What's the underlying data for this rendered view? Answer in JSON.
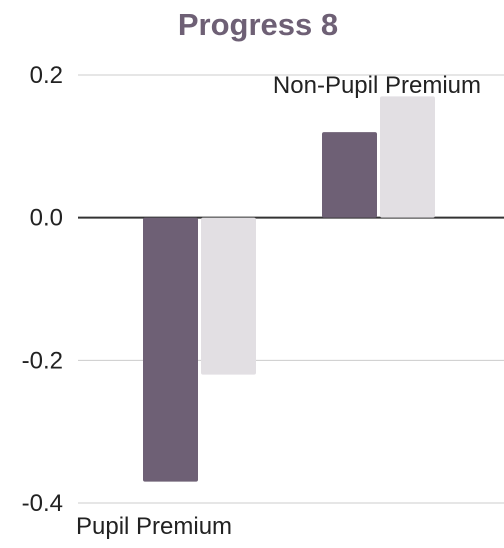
{
  "chart_data": {
    "type": "bar",
    "title": "Progress 8",
    "categories": [
      "Pupil Premium",
      "Non-Pupil Premium"
    ],
    "series": [
      {
        "values": [
          -0.37,
          0.12
        ],
        "color": "#6e6075"
      },
      {
        "values": [
          -0.22,
          0.17
        ],
        "color": "#e2dfe3"
      }
    ],
    "ylim": [
      -0.4,
      0.2
    ],
    "yticks": [
      "0.2",
      "0.0",
      "-0.2",
      "-0.4"
    ],
    "ytick_values": [
      0.2,
      0.0,
      -0.2,
      -0.4
    ],
    "grid": true,
    "legend": "none"
  }
}
